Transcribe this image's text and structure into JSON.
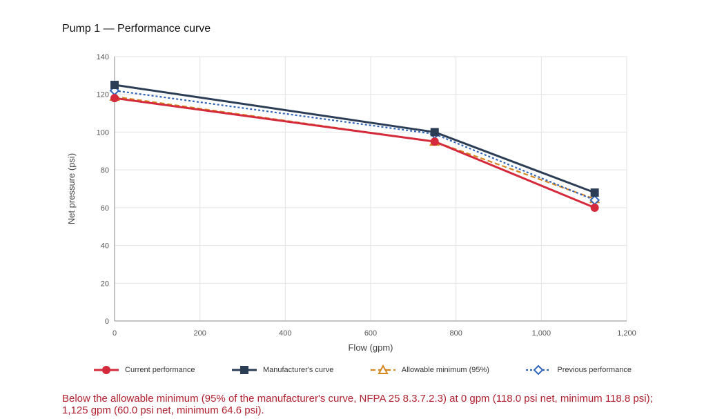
{
  "page": {
    "title": "Pump 1 — Performance curve",
    "note": "Below the allowable minimum (95% of the manufacturer's curve, NFPA 25 8.3.7.2.3) at 0 gpm (118.0 psi net, minimum 118.8 psi); 1,125 gpm (60.0 psi net, minimum 64.6 psi)."
  },
  "chart_data": {
    "type": "line",
    "title": "Pump 1 — Performance curve",
    "xlabel": "Flow (gpm)",
    "ylabel": "Net pressure (psi)",
    "xlim": [
      0,
      1200
    ],
    "ylim": [
      0,
      140
    ],
    "xticks": [
      0,
      200,
      400,
      600,
      800,
      1000,
      1200
    ],
    "xtick_labels": [
      "0",
      "200",
      "400",
      "600",
      "800",
      "1,000",
      "1,200"
    ],
    "yticks": [
      0,
      20,
      40,
      60,
      80,
      100,
      120,
      140
    ],
    "ytick_labels": [
      "0",
      "20",
      "40",
      "60",
      "80",
      "100",
      "120",
      "140"
    ],
    "grid": true,
    "legend_position": "bottom",
    "series": [
      {
        "name": "Allowable minimum (95%)",
        "color": "#d4861f",
        "style": "dashed",
        "marker": "triangle-open",
        "x": [
          0,
          750,
          1125
        ],
        "y": [
          118.8,
          95.0,
          64.6
        ]
      },
      {
        "name": "Previous performance",
        "color": "#2f64b8",
        "style": "dotted",
        "marker": "diamond-open",
        "x": [
          0,
          750,
          1125
        ],
        "y": [
          122,
          99,
          64
        ]
      },
      {
        "name": "Manufacturer's curve",
        "color": "#2c3e55",
        "style": "solid",
        "marker": "square",
        "x": [
          0,
          750,
          1125
        ],
        "y": [
          125,
          100,
          68
        ]
      },
      {
        "name": "Current performance",
        "color": "#d42a3c",
        "style": "solid",
        "marker": "circle",
        "x": [
          0,
          750,
          1125
        ],
        "y": [
          118,
          95,
          60
        ]
      }
    ],
    "legend_order": [
      "Current performance",
      "Manufacturer's curve",
      "Allowable minimum (95%)",
      "Previous performance"
    ]
  }
}
